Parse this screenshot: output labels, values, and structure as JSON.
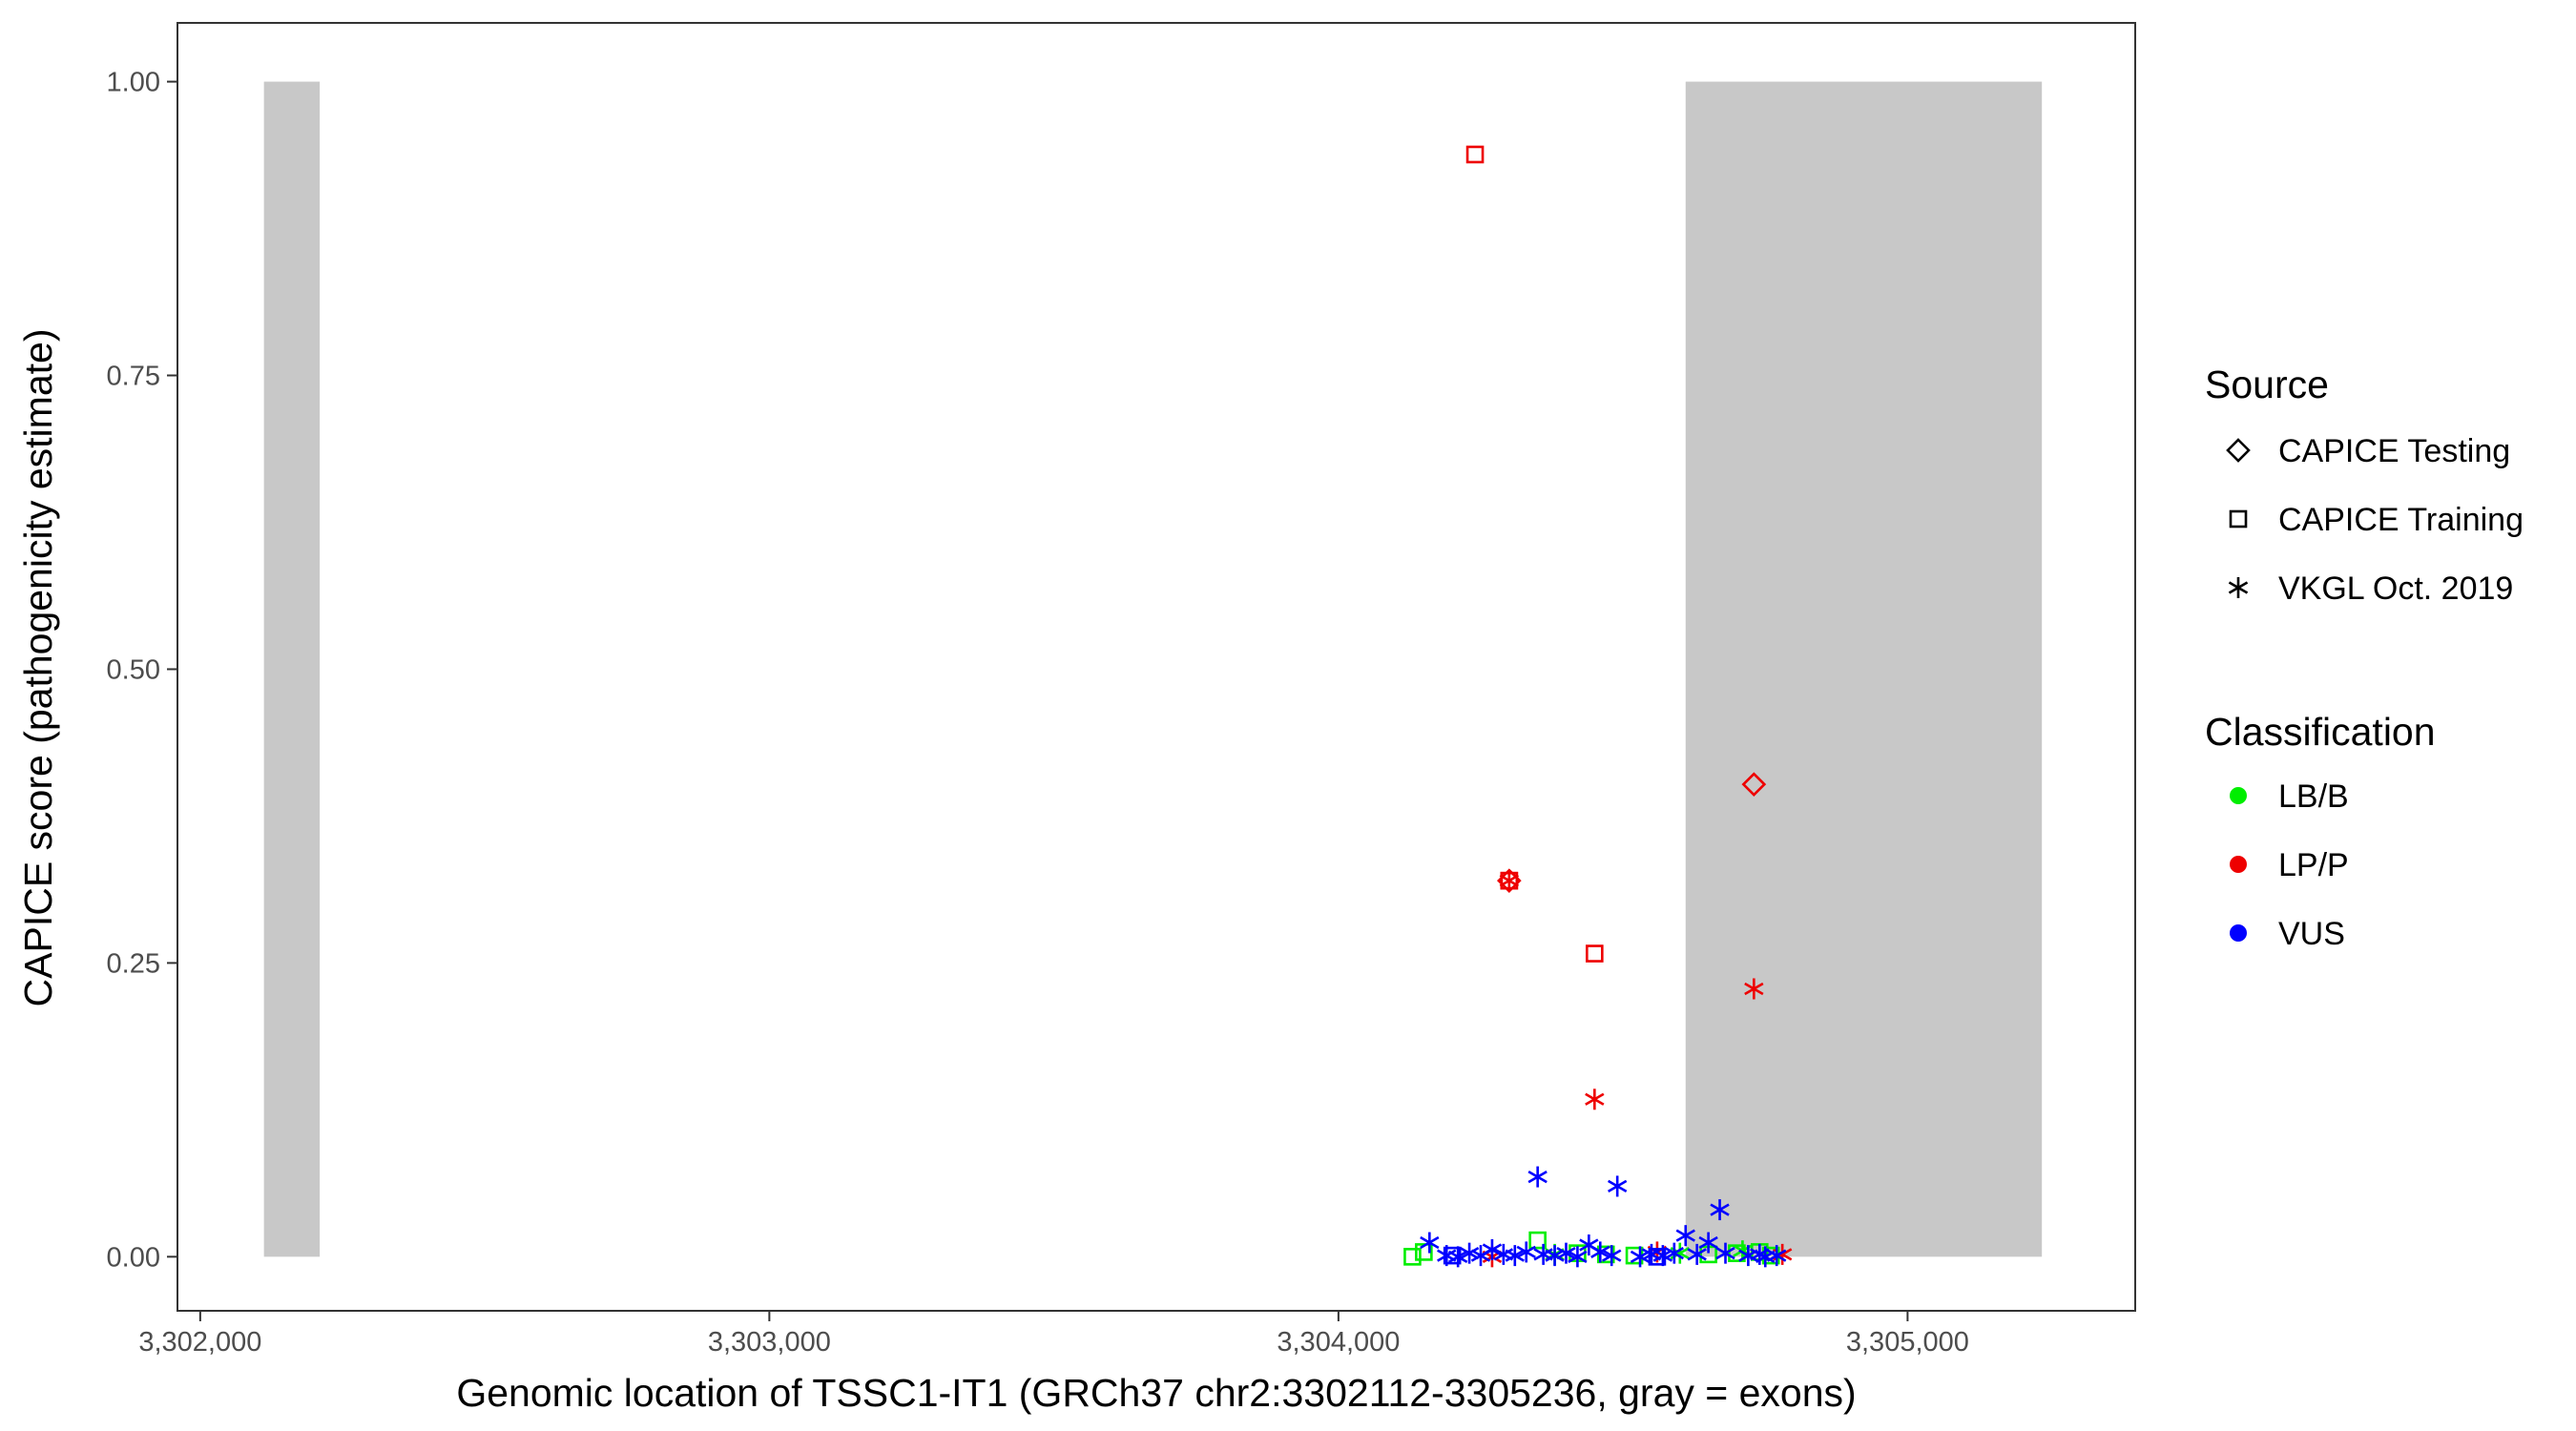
{
  "chart_data": {
    "type": "scatter",
    "title": "",
    "xlabel": "Genomic location of TSSC1-IT1 (GRCh37 chr2:3302112-3305236, gray = exons)",
    "ylabel": "CAPICE score (pathogenicity estimate)",
    "xlim": [
      3301960,
      3305400
    ],
    "ylim": [
      -0.046,
      1.05
    ],
    "x_ticks": [
      3302000,
      3303000,
      3304000,
      3305000
    ],
    "x_tick_labels": [
      "3,302,000",
      "3,303,000",
      "3,304,000",
      "3,305,000"
    ],
    "y_ticks": [
      0,
      0.25,
      0.5,
      0.75,
      1.0
    ],
    "y_tick_labels": [
      "0.00",
      "0.25",
      "0.50",
      "0.75",
      "1.00"
    ],
    "grid": false,
    "exons": [
      {
        "start": 3302112,
        "end": 3302210
      },
      {
        "start": 3304610,
        "end": 3305236
      }
    ],
    "exon_color": "#c8c8c8",
    "legend_placement": "right",
    "legend": {
      "source_title": "Source",
      "source_items": [
        {
          "label": "CAPICE Testing",
          "shape": "diamond"
        },
        {
          "label": "CAPICE Training",
          "shape": "square"
        },
        {
          "label": "VKGL Oct. 2019",
          "shape": "asterisk"
        }
      ],
      "class_title": "Classification",
      "class_items": [
        {
          "label": "LB/B",
          "color": "#00ee00"
        },
        {
          "label": "LP/P",
          "color": "#ee0000"
        },
        {
          "label": "VUS",
          "color": "#0000ff"
        }
      ]
    },
    "series": [
      {
        "source": "CAPICE Training",
        "classification": "LP/P",
        "shape": "square",
        "color": "#ee0000",
        "points": [
          [
            3304240,
            0.938
          ],
          [
            3304300,
            0.32
          ],
          [
            3304450,
            0.258
          ],
          [
            3304300,
            0.32
          ]
        ]
      },
      {
        "source": "CAPICE Testing",
        "classification": "LP/P",
        "shape": "diamond",
        "color": "#ee0000",
        "points": [
          [
            3304730,
            0.402
          ],
          [
            3304300,
            0.32
          ]
        ]
      },
      {
        "source": "VKGL Oct. 2019",
        "classification": "LP/P",
        "shape": "asterisk",
        "color": "#ee0000",
        "points": [
          [
            3304300,
            0.32
          ],
          [
            3304730,
            0.228
          ],
          [
            3304450,
            0.134
          ],
          [
            3304270,
            0.0
          ],
          [
            3304560,
            0.004
          ],
          [
            3304780,
            0.002
          ]
        ]
      },
      {
        "source": "CAPICE Training",
        "classification": "LB/B",
        "shape": "square",
        "color": "#00ee00",
        "points": [
          [
            3304130,
            0.0
          ],
          [
            3304150,
            0.004
          ],
          [
            3304350,
            0.014
          ],
          [
            3304420,
            0.003
          ],
          [
            3304470,
            0.002
          ],
          [
            3304520,
            0.001
          ],
          [
            3304650,
            0.002
          ],
          [
            3304700,
            0.003
          ],
          [
            3304740,
            0.004
          ],
          [
            3304760,
            0.001
          ]
        ]
      },
      {
        "source": "VKGL Oct. 2019",
        "classification": "LB/B",
        "shape": "asterisk",
        "color": "#00ee00",
        "points": [
          [
            3304380,
            0.002
          ],
          [
            3304600,
            0.003
          ],
          [
            3304710,
            0.005
          ]
        ]
      },
      {
        "source": "VKGL Oct. 2019",
        "classification": "VUS",
        "shape": "asterisk",
        "color": "#0000ff",
        "points": [
          [
            3304350,
            0.068
          ],
          [
            3304490,
            0.06
          ],
          [
            3304670,
            0.04
          ],
          [
            3304160,
            0.012
          ],
          [
            3304190,
            0.001
          ],
          [
            3304210,
            0.0
          ],
          [
            3304230,
            0.003
          ],
          [
            3304250,
            0.001
          ],
          [
            3304270,
            0.006
          ],
          [
            3304290,
            0.002
          ],
          [
            3304310,
            0.001
          ],
          [
            3304330,
            0.004
          ],
          [
            3304360,
            0.002
          ],
          [
            3304380,
            0.001
          ],
          [
            3304400,
            0.003
          ],
          [
            3304420,
            0.0
          ],
          [
            3304440,
            0.01
          ],
          [
            3304460,
            0.004
          ],
          [
            3304480,
            0.001
          ],
          [
            3304530,
            0.0
          ],
          [
            3304550,
            0.002
          ],
          [
            3304570,
            0.001
          ],
          [
            3304590,
            0.003
          ],
          [
            3304610,
            0.018
          ],
          [
            3304630,
            0.002
          ],
          [
            3304650,
            0.012
          ],
          [
            3304680,
            0.003
          ],
          [
            3304720,
            0.001
          ],
          [
            3304740,
            0.002
          ],
          [
            3304750,
            0.0
          ],
          [
            3304770,
            0.001
          ]
        ]
      },
      {
        "source": "CAPICE Training",
        "classification": "VUS",
        "shape": "square",
        "color": "#0000ff",
        "points": [
          [
            3304200,
            0.001
          ],
          [
            3304560,
            0.0
          ]
        ]
      }
    ]
  }
}
